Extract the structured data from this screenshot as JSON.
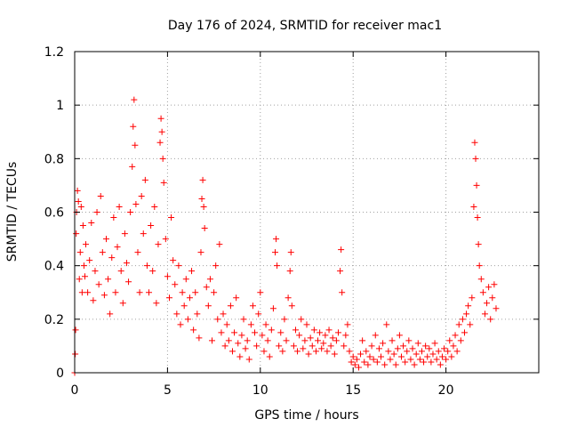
{
  "chart_data": {
    "type": "scatter",
    "title": "Day 176 of 2024, SRMTID for receiver mac1",
    "xlabel": "GPS time / hours",
    "ylabel": "SRMTID / TECUs",
    "xlim": [
      0,
      25
    ],
    "ylim": [
      0,
      1.2
    ],
    "xticks": [
      0,
      5,
      10,
      15,
      20
    ],
    "xtick_labels": [
      "0",
      "5",
      "10",
      "15",
      "20"
    ],
    "yticks": [
      0,
      0.2,
      0.4,
      0.6,
      0.8,
      1.0,
      1.2
    ],
    "ytick_labels": [
      "0",
      "0.2",
      "0.4",
      "0.6",
      "0.8",
      "1",
      "1.2"
    ],
    "grid": true,
    "marker": "+",
    "color": "#ff0000",
    "series": [
      {
        "name": "SRMTID",
        "points": [
          [
            0.0,
            0.0
          ],
          [
            0.03,
            0.07
          ],
          [
            0.05,
            0.16
          ],
          [
            0.08,
            0.52
          ],
          [
            0.1,
            0.6
          ],
          [
            0.15,
            0.68
          ],
          [
            0.2,
            0.64
          ],
          [
            0.25,
            0.35
          ],
          [
            0.3,
            0.45
          ],
          [
            0.35,
            0.62
          ],
          [
            0.4,
            0.3
          ],
          [
            0.45,
            0.55
          ],
          [
            0.5,
            0.4
          ],
          [
            0.55,
            0.36
          ],
          [
            0.6,
            0.48
          ],
          [
            0.7,
            0.3
          ],
          [
            0.8,
            0.42
          ],
          [
            0.9,
            0.56
          ],
          [
            1.0,
            0.27
          ],
          [
            1.1,
            0.38
          ],
          [
            1.2,
            0.6
          ],
          [
            1.3,
            0.33
          ],
          [
            1.4,
            0.66
          ],
          [
            1.5,
            0.45
          ],
          [
            1.6,
            0.29
          ],
          [
            1.7,
            0.5
          ],
          [
            1.8,
            0.35
          ],
          [
            1.9,
            0.22
          ],
          [
            2.0,
            0.43
          ],
          [
            2.1,
            0.58
          ],
          [
            2.2,
            0.3
          ],
          [
            2.3,
            0.47
          ],
          [
            2.4,
            0.62
          ],
          [
            2.5,
            0.38
          ],
          [
            2.6,
            0.26
          ],
          [
            2.7,
            0.52
          ],
          [
            2.8,
            0.41
          ],
          [
            2.9,
            0.34
          ],
          [
            3.0,
            0.6
          ],
          [
            3.1,
            0.77
          ],
          [
            3.15,
            0.92
          ],
          [
            3.2,
            1.02
          ],
          [
            3.25,
            0.85
          ],
          [
            3.3,
            0.63
          ],
          [
            3.4,
            0.45
          ],
          [
            3.5,
            0.3
          ],
          [
            3.6,
            0.66
          ],
          [
            3.7,
            0.52
          ],
          [
            3.8,
            0.72
          ],
          [
            3.9,
            0.4
          ],
          [
            4.0,
            0.3
          ],
          [
            4.1,
            0.55
          ],
          [
            4.2,
            0.38
          ],
          [
            4.3,
            0.62
          ],
          [
            4.4,
            0.26
          ],
          [
            4.5,
            0.48
          ],
          [
            4.6,
            0.86
          ],
          [
            4.65,
            0.95
          ],
          [
            4.7,
            0.9
          ],
          [
            4.75,
            0.8
          ],
          [
            4.8,
            0.71
          ],
          [
            4.9,
            0.5
          ],
          [
            5.0,
            0.36
          ],
          [
            5.1,
            0.28
          ],
          [
            5.2,
            0.58
          ],
          [
            5.3,
            0.42
          ],
          [
            5.4,
            0.33
          ],
          [
            5.5,
            0.22
          ],
          [
            5.6,
            0.4
          ],
          [
            5.7,
            0.18
          ],
          [
            5.8,
            0.3
          ],
          [
            5.9,
            0.25
          ],
          [
            6.0,
            0.35
          ],
          [
            6.1,
            0.2
          ],
          [
            6.2,
            0.28
          ],
          [
            6.3,
            0.38
          ],
          [
            6.4,
            0.16
          ],
          [
            6.5,
            0.3
          ],
          [
            6.6,
            0.22
          ],
          [
            6.7,
            0.13
          ],
          [
            6.8,
            0.45
          ],
          [
            6.85,
            0.65
          ],
          [
            6.9,
            0.72
          ],
          [
            6.95,
            0.62
          ],
          [
            7.0,
            0.54
          ],
          [
            7.1,
            0.32
          ],
          [
            7.2,
            0.25
          ],
          [
            7.3,
            0.35
          ],
          [
            7.4,
            0.12
          ],
          [
            7.5,
            0.3
          ],
          [
            7.6,
            0.4
          ],
          [
            7.7,
            0.2
          ],
          [
            7.8,
            0.48
          ],
          [
            7.9,
            0.15
          ],
          [
            8.0,
            0.22
          ],
          [
            8.1,
            0.1
          ],
          [
            8.2,
            0.18
          ],
          [
            8.3,
            0.12
          ],
          [
            8.4,
            0.25
          ],
          [
            8.5,
            0.08
          ],
          [
            8.6,
            0.15
          ],
          [
            8.7,
            0.28
          ],
          [
            8.8,
            0.11
          ],
          [
            8.9,
            0.06
          ],
          [
            9.0,
            0.14
          ],
          [
            9.1,
            0.2
          ],
          [
            9.2,
            0.09
          ],
          [
            9.3,
            0.12
          ],
          [
            9.4,
            0.05
          ],
          [
            9.5,
            0.18
          ],
          [
            9.6,
            0.25
          ],
          [
            9.7,
            0.15
          ],
          [
            9.8,
            0.1
          ],
          [
            9.9,
            0.22
          ],
          [
            10.0,
            0.3
          ],
          [
            10.1,
            0.14
          ],
          [
            10.2,
            0.08
          ],
          [
            10.3,
            0.18
          ],
          [
            10.4,
            0.12
          ],
          [
            10.5,
            0.06
          ],
          [
            10.6,
            0.16
          ],
          [
            10.7,
            0.24
          ],
          [
            10.8,
            0.45
          ],
          [
            10.85,
            0.5
          ],
          [
            10.9,
            0.4
          ],
          [
            11.0,
            0.1
          ],
          [
            11.1,
            0.15
          ],
          [
            11.2,
            0.08
          ],
          [
            11.3,
            0.2
          ],
          [
            11.4,
            0.12
          ],
          [
            11.5,
            0.28
          ],
          [
            11.6,
            0.38
          ],
          [
            11.65,
            0.45
          ],
          [
            11.7,
            0.25
          ],
          [
            11.8,
            0.1
          ],
          [
            11.9,
            0.16
          ],
          [
            12.0,
            0.08
          ],
          [
            12.1,
            0.14
          ],
          [
            12.2,
            0.2
          ],
          [
            12.3,
            0.09
          ],
          [
            12.4,
            0.12
          ],
          [
            12.5,
            0.18
          ],
          [
            12.6,
            0.07
          ],
          [
            12.7,
            0.13
          ],
          [
            12.8,
            0.1
          ],
          [
            12.9,
            0.16
          ],
          [
            13.0,
            0.08
          ],
          [
            13.1,
            0.12
          ],
          [
            13.2,
            0.15
          ],
          [
            13.3,
            0.09
          ],
          [
            13.4,
            0.11
          ],
          [
            13.5,
            0.14
          ],
          [
            13.6,
            0.08
          ],
          [
            13.7,
            0.16
          ],
          [
            13.8,
            0.1
          ],
          [
            13.9,
            0.13
          ],
          [
            14.0,
            0.07
          ],
          [
            14.1,
            0.12
          ],
          [
            14.2,
            0.15
          ],
          [
            14.3,
            0.38
          ],
          [
            14.35,
            0.46
          ],
          [
            14.4,
            0.3
          ],
          [
            14.5,
            0.1
          ],
          [
            14.6,
            0.14
          ],
          [
            14.7,
            0.18
          ],
          [
            14.8,
            0.08
          ],
          [
            14.9,
            0.04
          ],
          [
            15.0,
            0.06
          ],
          [
            15.1,
            0.03
          ],
          [
            15.2,
            0.05
          ],
          [
            15.3,
            0.02
          ],
          [
            15.4,
            0.07
          ],
          [
            15.5,
            0.12
          ],
          [
            15.6,
            0.04
          ],
          [
            15.7,
            0.08
          ],
          [
            15.8,
            0.03
          ],
          [
            15.9,
            0.06
          ],
          [
            16.0,
            0.1
          ],
          [
            16.1,
            0.05
          ],
          [
            16.2,
            0.14
          ],
          [
            16.3,
            0.04
          ],
          [
            16.4,
            0.09
          ],
          [
            16.5,
            0.06
          ],
          [
            16.6,
            0.11
          ],
          [
            16.7,
            0.03
          ],
          [
            16.8,
            0.18
          ],
          [
            16.9,
            0.08
          ],
          [
            17.0,
            0.05
          ],
          [
            17.1,
            0.12
          ],
          [
            17.2,
            0.07
          ],
          [
            17.3,
            0.03
          ],
          [
            17.4,
            0.09
          ],
          [
            17.5,
            0.14
          ],
          [
            17.6,
            0.06
          ],
          [
            17.7,
            0.1
          ],
          [
            17.8,
            0.04
          ],
          [
            17.9,
            0.08
          ],
          [
            18.0,
            0.12
          ],
          [
            18.1,
            0.05
          ],
          [
            18.2,
            0.09
          ],
          [
            18.3,
            0.03
          ],
          [
            18.4,
            0.07
          ],
          [
            18.5,
            0.11
          ],
          [
            18.6,
            0.05
          ],
          [
            18.7,
            0.08
          ],
          [
            18.8,
            0.04
          ],
          [
            18.9,
            0.1
          ],
          [
            19.0,
            0.06
          ],
          [
            19.1,
            0.09
          ],
          [
            19.2,
            0.04
          ],
          [
            19.3,
            0.07
          ],
          [
            19.4,
            0.11
          ],
          [
            19.5,
            0.05
          ],
          [
            19.6,
            0.08
          ],
          [
            19.7,
            0.03
          ],
          [
            19.8,
            0.06
          ],
          [
            19.9,
            0.09
          ],
          [
            20.0,
            0.05
          ],
          [
            20.1,
            0.08
          ],
          [
            20.2,
            0.12
          ],
          [
            20.3,
            0.06
          ],
          [
            20.4,
            0.1
          ],
          [
            20.5,
            0.14
          ],
          [
            20.6,
            0.08
          ],
          [
            20.7,
            0.18
          ],
          [
            20.8,
            0.12
          ],
          [
            20.9,
            0.2
          ],
          [
            21.0,
            0.15
          ],
          [
            21.1,
            0.22
          ],
          [
            21.2,
            0.25
          ],
          [
            21.3,
            0.18
          ],
          [
            21.4,
            0.28
          ],
          [
            21.5,
            0.62
          ],
          [
            21.55,
            0.86
          ],
          [
            21.6,
            0.8
          ],
          [
            21.65,
            0.7
          ],
          [
            21.7,
            0.58
          ],
          [
            21.75,
            0.48
          ],
          [
            21.8,
            0.4
          ],
          [
            21.9,
            0.35
          ],
          [
            22.0,
            0.3
          ],
          [
            22.1,
            0.22
          ],
          [
            22.2,
            0.26
          ],
          [
            22.3,
            0.32
          ],
          [
            22.4,
            0.2
          ],
          [
            22.5,
            0.28
          ],
          [
            22.6,
            0.33
          ],
          [
            22.7,
            0.24
          ]
        ]
      }
    ]
  }
}
